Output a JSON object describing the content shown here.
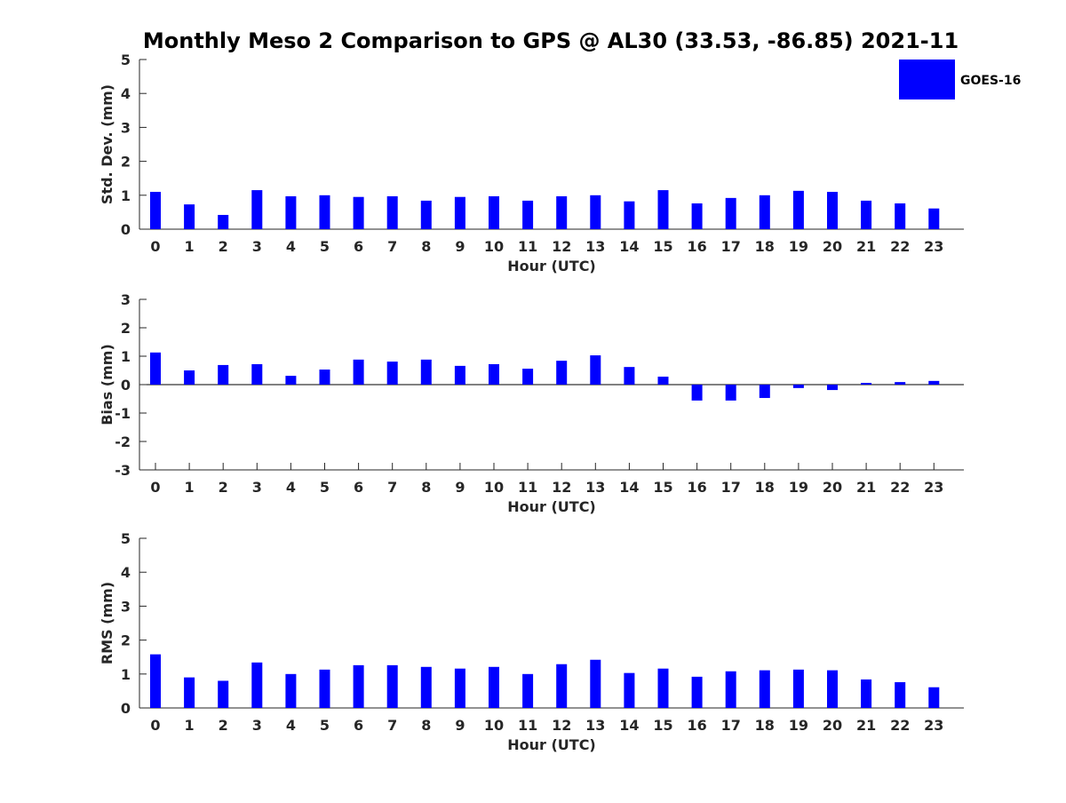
{
  "title": "Monthly Meso 2 Comparison to GPS @ AL30 (33.53, -86.85) 2021-11",
  "legend": {
    "label": "GOES-16",
    "color": "#0000ff"
  },
  "chart_data": [
    {
      "type": "bar",
      "xlabel": "Hour (UTC)",
      "ylabel": "Std. Dev. (mm)",
      "ylim": [
        0,
        5
      ],
      "yticks": [
        "0",
        "1",
        "2",
        "3",
        "4",
        "5"
      ],
      "categories": [
        "0",
        "1",
        "2",
        "3",
        "4",
        "5",
        "6",
        "7",
        "8",
        "9",
        "10",
        "11",
        "12",
        "13",
        "14",
        "15",
        "16",
        "17",
        "18",
        "19",
        "20",
        "21",
        "22",
        "23"
      ],
      "series": [
        {
          "name": "GOES-16",
          "values": [
            1.1,
            0.73,
            0.42,
            1.15,
            0.97,
            1.0,
            0.95,
            0.97,
            0.84,
            0.95,
            0.97,
            0.84,
            0.97,
            1.0,
            0.82,
            1.15,
            0.76,
            0.92,
            1.0,
            1.13,
            1.1,
            0.84,
            0.76,
            0.61
          ]
        }
      ],
      "grid": false
    },
    {
      "type": "bar",
      "xlabel": "Hour (UTC)",
      "ylabel": "Bias (mm)",
      "ylim": [
        -3,
        3
      ],
      "yticks": [
        "-3",
        "-2",
        "-1",
        "0",
        "1",
        "2",
        "3"
      ],
      "categories": [
        "0",
        "1",
        "2",
        "3",
        "4",
        "5",
        "6",
        "7",
        "8",
        "9",
        "10",
        "11",
        "12",
        "13",
        "14",
        "15",
        "16",
        "17",
        "18",
        "19",
        "20",
        "21",
        "22",
        "23"
      ],
      "series": [
        {
          "name": "GOES-16",
          "values": [
            1.13,
            0.5,
            0.69,
            0.72,
            0.31,
            0.53,
            0.88,
            0.81,
            0.88,
            0.66,
            0.72,
            0.56,
            0.84,
            1.03,
            0.62,
            0.28,
            -0.56,
            -0.56,
            -0.47,
            -0.12,
            -0.19,
            0.06,
            0.09,
            0.13
          ]
        }
      ],
      "grid": false
    },
    {
      "type": "bar",
      "xlabel": "Hour (UTC)",
      "ylabel": "RMS (mm)",
      "ylim": [
        0,
        5
      ],
      "yticks": [
        "0",
        "1",
        "2",
        "3",
        "4",
        "5"
      ],
      "categories": [
        "0",
        "1",
        "2",
        "3",
        "4",
        "5",
        "6",
        "7",
        "8",
        "9",
        "10",
        "11",
        "12",
        "13",
        "14",
        "15",
        "16",
        "17",
        "18",
        "19",
        "20",
        "21",
        "22",
        "23"
      ],
      "series": [
        {
          "name": "GOES-16",
          "values": [
            1.58,
            0.9,
            0.8,
            1.34,
            1.0,
            1.13,
            1.26,
            1.26,
            1.21,
            1.16,
            1.21,
            1.0,
            1.29,
            1.42,
            1.03,
            1.16,
            0.92,
            1.08,
            1.11,
            1.13,
            1.11,
            0.84,
            0.76,
            0.61
          ]
        }
      ],
      "grid": false
    }
  ]
}
